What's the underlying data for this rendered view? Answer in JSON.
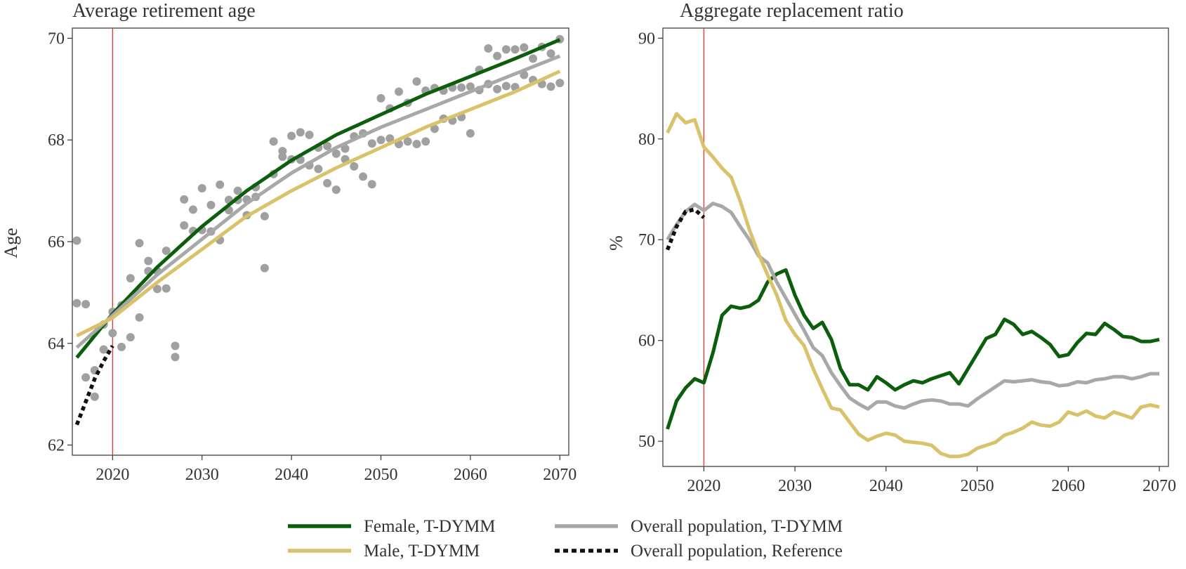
{
  "chart_data": [
    {
      "type": "line",
      "title": "Average retirement age",
      "xlabel": "",
      "ylabel": "Age",
      "xlim": [
        2015.5,
        2071
      ],
      "ylim": [
        61.8,
        70.2
      ],
      "x_ticks": [
        2020,
        2030,
        2040,
        2050,
        2060,
        2070
      ],
      "y_ticks": [
        62,
        64,
        66,
        68,
        70
      ],
      "vline": 2020,
      "grid": false,
      "series": [
        {
          "name": "Female, T-DYMM",
          "color": "#0b5e0b",
          "x": [
            2016,
            2020,
            2025,
            2030,
            2035,
            2040,
            2045,
            2050,
            2055,
            2060,
            2065,
            2070
          ],
          "y": [
            63.72,
            64.58,
            65.5,
            66.3,
            67.0,
            67.6,
            68.1,
            68.5,
            68.9,
            69.25,
            69.6,
            69.97
          ]
        },
        {
          "name": "Overall population, T-DYMM",
          "color": "#a8a8a8",
          "x": [
            2016,
            2020,
            2025,
            2030,
            2035,
            2040,
            2045,
            2050,
            2055,
            2060,
            2065,
            2070
          ],
          "y": [
            63.92,
            64.55,
            65.35,
            66.05,
            66.75,
            67.35,
            67.85,
            68.25,
            68.6,
            68.95,
            69.3,
            69.65
          ]
        },
        {
          "name": "Male, T-DYMM",
          "color": "#d9c26a",
          "x": [
            2016,
            2020,
            2025,
            2030,
            2035,
            2040,
            2045,
            2050,
            2055,
            2060,
            2065,
            2070
          ],
          "y": [
            64.15,
            64.5,
            65.2,
            65.85,
            66.5,
            67.0,
            67.45,
            67.85,
            68.25,
            68.6,
            68.95,
            69.35
          ]
        },
        {
          "name": "Overall population, Reference",
          "color": "#111111",
          "dash": true,
          "x": [
            2016,
            2017,
            2018,
            2019,
            2020
          ],
          "y": [
            62.4,
            62.85,
            63.3,
            63.65,
            63.95
          ]
        }
      ],
      "scatter": {
        "color": "#a0a0a0",
        "points": [
          [
            2016,
            66.02
          ],
          [
            2016,
            64.79
          ],
          [
            2017,
            64.77
          ],
          [
            2017,
            63.33
          ],
          [
            2018,
            63.47
          ],
          [
            2018,
            62.95
          ],
          [
            2019,
            64.37
          ],
          [
            2019,
            63.88
          ],
          [
            2020,
            64.62
          ],
          [
            2020,
            64.2
          ],
          [
            2021,
            64.75
          ],
          [
            2021,
            63.93
          ],
          [
            2022,
            65.28
          ],
          [
            2022,
            64.12
          ],
          [
            2023,
            65.97
          ],
          [
            2023,
            64.51
          ],
          [
            2024,
            65.62
          ],
          [
            2024,
            65.42
          ],
          [
            2025,
            65.42
          ],
          [
            2025,
            65.07
          ],
          [
            2026,
            65.82
          ],
          [
            2026,
            65.08
          ],
          [
            2027,
            63.95
          ],
          [
            2027,
            63.73
          ],
          [
            2028,
            66.83
          ],
          [
            2028,
            66.32
          ],
          [
            2029,
            66.63
          ],
          [
            2029,
            66.21
          ],
          [
            2030,
            67.05
          ],
          [
            2030,
            66.23
          ],
          [
            2031,
            66.72
          ],
          [
            2031,
            66.2
          ],
          [
            2032,
            67.12
          ],
          [
            2032,
            66.03
          ],
          [
            2033,
            66.82
          ],
          [
            2033,
            66.62
          ],
          [
            2034,
            67.0
          ],
          [
            2034,
            66.82
          ],
          [
            2035,
            66.83
          ],
          [
            2035,
            66.52
          ],
          [
            2036,
            67.07
          ],
          [
            2036,
            66.88
          ],
          [
            2037,
            66.5
          ],
          [
            2037,
            65.48
          ],
          [
            2038,
            67.97
          ],
          [
            2038,
            67.33
          ],
          [
            2039,
            67.78
          ],
          [
            2039,
            67.67
          ],
          [
            2040,
            68.08
          ],
          [
            2040,
            67.62
          ],
          [
            2041,
            68.15
          ],
          [
            2041,
            67.61
          ],
          [
            2042,
            68.1
          ],
          [
            2042,
            67.5
          ],
          [
            2043,
            67.85
          ],
          [
            2043,
            67.43
          ],
          [
            2044,
            67.88
          ],
          [
            2044,
            67.15
          ],
          [
            2045,
            67.73
          ],
          [
            2045,
            67.02
          ],
          [
            2046,
            67.83
          ],
          [
            2046,
            67.62
          ],
          [
            2047,
            68.07
          ],
          [
            2047,
            67.48
          ],
          [
            2048,
            68.13
          ],
          [
            2048,
            67.28
          ],
          [
            2049,
            67.93
          ],
          [
            2049,
            67.13
          ],
          [
            2050,
            68.82
          ],
          [
            2050,
            68.0
          ],
          [
            2051,
            68.62
          ],
          [
            2051,
            68.03
          ],
          [
            2052,
            68.95
          ],
          [
            2052,
            67.92
          ],
          [
            2053,
            68.73
          ],
          [
            2053,
            67.97
          ],
          [
            2054,
            69.15
          ],
          [
            2054,
            67.92
          ],
          [
            2055,
            68.97
          ],
          [
            2055,
            67.97
          ],
          [
            2056,
            69.02
          ],
          [
            2056,
            68.22
          ],
          [
            2057,
            68.97
          ],
          [
            2057,
            68.42
          ],
          [
            2058,
            69.03
          ],
          [
            2058,
            68.38
          ],
          [
            2059,
            69.03
          ],
          [
            2059,
            68.45
          ],
          [
            2060,
            69.05
          ],
          [
            2060,
            68.13
          ],
          [
            2061,
            69.38
          ],
          [
            2061,
            68.98
          ],
          [
            2062,
            69.8
          ],
          [
            2062,
            69.1
          ],
          [
            2063,
            69.65
          ],
          [
            2063,
            69.0
          ],
          [
            2064,
            69.78
          ],
          [
            2064,
            69.06
          ],
          [
            2065,
            69.78
          ],
          [
            2065,
            69.04
          ],
          [
            2066,
            69.82
          ],
          [
            2066,
            69.28
          ],
          [
            2067,
            69.6
          ],
          [
            2067,
            69.18
          ],
          [
            2068,
            69.83
          ],
          [
            2068,
            69.1
          ],
          [
            2069,
            69.7
          ],
          [
            2069,
            69.05
          ],
          [
            2070,
            69.98
          ],
          [
            2070,
            69.12
          ]
        ]
      }
    },
    {
      "type": "line",
      "title": "Aggregate replacement ratio",
      "xlabel": "",
      "ylabel": "%",
      "xlim": [
        2015.5,
        2071
      ],
      "ylim": [
        47.5,
        91
      ],
      "x_ticks": [
        2020,
        2030,
        2040,
        2050,
        2060,
        2070
      ],
      "y_ticks": [
        50,
        60,
        70,
        80,
        90
      ],
      "vline": 2020,
      "grid": false,
      "series": [
        {
          "name": "Female, T-DYMM",
          "color": "#0b5e0b",
          "x": [
            2016,
            2017,
            2018,
            2019,
            2020,
            2021,
            2022,
            2023,
            2024,
            2025,
            2026,
            2027,
            2028,
            2029,
            2030,
            2031,
            2032,
            2033,
            2034,
            2035,
            2036,
            2037,
            2038,
            2039,
            2040,
            2041,
            2042,
            2043,
            2044,
            2045,
            2046,
            2047,
            2048,
            2049,
            2050,
            2051,
            2052,
            2053,
            2054,
            2055,
            2056,
            2057,
            2058,
            2059,
            2060,
            2061,
            2062,
            2063,
            2064,
            2065,
            2066,
            2067,
            2068,
            2069,
            2070
          ],
          "y": [
            51.2,
            54.0,
            55.3,
            56.2,
            55.8,
            58.8,
            62.5,
            63.4,
            63.2,
            63.4,
            64.0,
            65.8,
            66.6,
            67.0,
            64.5,
            62.5,
            61.2,
            61.8,
            60.1,
            57.2,
            55.6,
            55.6,
            55.1,
            56.4,
            55.8,
            55.1,
            55.6,
            56.0,
            55.8,
            56.2,
            56.5,
            56.8,
            55.7,
            57.2,
            58.7,
            60.2,
            60.6,
            62.1,
            61.6,
            60.6,
            60.9,
            60.3,
            59.6,
            58.4,
            58.6,
            59.8,
            60.7,
            60.6,
            61.7,
            61.1,
            60.4,
            60.3,
            59.9,
            59.9,
            60.1
          ]
        },
        {
          "name": "Overall population, T-DYMM",
          "color": "#a8a8a8",
          "x": [
            2016,
            2017,
            2018,
            2019,
            2020,
            2021,
            2022,
            2023,
            2024,
            2025,
            2026,
            2027,
            2028,
            2029,
            2030,
            2031,
            2032,
            2033,
            2034,
            2035,
            2036,
            2037,
            2038,
            2039,
            2040,
            2041,
            2042,
            2043,
            2044,
            2045,
            2046,
            2047,
            2048,
            2049,
            2050,
            2051,
            2052,
            2053,
            2054,
            2055,
            2056,
            2057,
            2058,
            2059,
            2060,
            2061,
            2062,
            2063,
            2064,
            2065,
            2066,
            2067,
            2068,
            2069,
            2070
          ],
          "y": [
            70.0,
            71.5,
            72.8,
            73.5,
            72.9,
            73.6,
            73.3,
            72.7,
            71.3,
            70.0,
            68.4,
            67.7,
            65.8,
            64.2,
            62.6,
            61.0,
            59.3,
            58.5,
            56.8,
            55.5,
            54.3,
            53.7,
            53.2,
            53.9,
            53.9,
            53.5,
            53.3,
            53.7,
            54.0,
            54.1,
            54.0,
            53.7,
            53.7,
            53.5,
            54.2,
            54.8,
            55.4,
            56.0,
            55.9,
            56.0,
            56.1,
            55.9,
            55.8,
            55.5,
            55.6,
            55.9,
            55.8,
            56.1,
            56.2,
            56.4,
            56.4,
            56.2,
            56.4,
            56.7,
            56.7
          ]
        },
        {
          "name": "Male, T-DYMM",
          "color": "#d9c26a",
          "x": [
            2016,
            2017,
            2018,
            2019,
            2020,
            2021,
            2022,
            2023,
            2024,
            2025,
            2026,
            2027,
            2028,
            2029,
            2030,
            2031,
            2032,
            2033,
            2034,
            2035,
            2036,
            2037,
            2038,
            2039,
            2040,
            2041,
            2042,
            2043,
            2044,
            2045,
            2046,
            2047,
            2048,
            2049,
            2050,
            2051,
            2052,
            2053,
            2054,
            2055,
            2056,
            2057,
            2058,
            2059,
            2060,
            2061,
            2062,
            2063,
            2064,
            2065,
            2066,
            2067,
            2068,
            2069,
            2070
          ],
          "y": [
            80.6,
            82.5,
            81.6,
            81.9,
            79.2,
            78.2,
            77.1,
            76.2,
            73.8,
            71.0,
            68.6,
            66.5,
            64.5,
            62.0,
            60.6,
            59.5,
            57.2,
            55.2,
            53.3,
            53.1,
            51.9,
            50.7,
            50.1,
            50.5,
            50.8,
            50.6,
            50.0,
            49.9,
            49.8,
            49.6,
            48.8,
            48.5,
            48.5,
            48.7,
            49.3,
            49.6,
            49.9,
            50.6,
            50.9,
            51.3,
            51.9,
            51.6,
            51.5,
            51.9,
            52.9,
            52.6,
            53.0,
            52.5,
            52.3,
            52.9,
            52.6,
            52.3,
            53.4,
            53.6,
            53.4
          ]
        },
        {
          "name": "Overall population, Reference",
          "color": "#111111",
          "dash": true,
          "x": [
            2016,
            2017,
            2018,
            2019,
            2020
          ],
          "y": [
            69.0,
            71.3,
            72.8,
            73.0,
            72.2
          ]
        }
      ]
    }
  ],
  "legend": {
    "items": [
      {
        "label": "Female, T-DYMM",
        "color": "#0b5e0b",
        "dash": false
      },
      {
        "label": "Overall population, T-DYMM",
        "color": "#a8a8a8",
        "dash": false
      },
      {
        "label": "Male, T-DYMM",
        "color": "#d9c26a",
        "dash": false
      },
      {
        "label": "Overall population, Reference",
        "color": "#111111",
        "dash": true
      }
    ]
  }
}
